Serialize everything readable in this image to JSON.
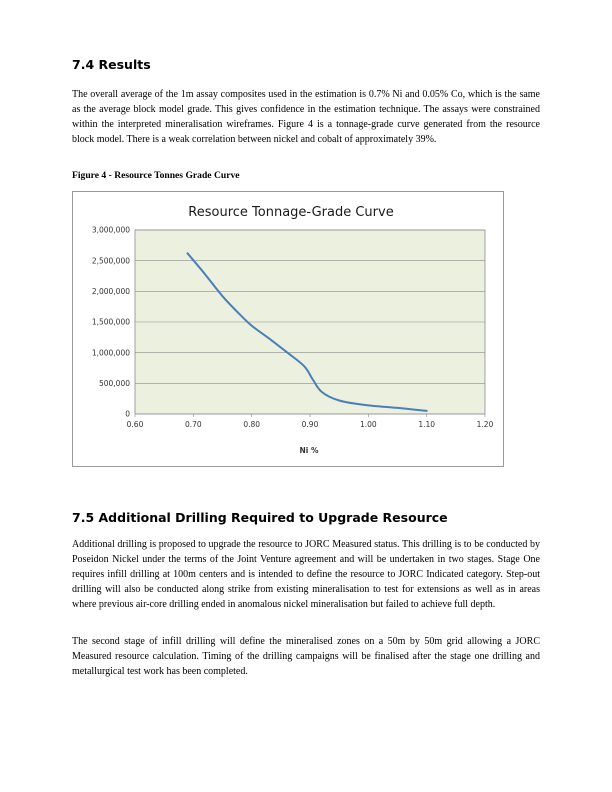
{
  "section_74": {
    "heading": "7.4 Results",
    "paragraph": "The overall average of the 1m assay composites used in the estimation is 0.7% Ni and 0.05% Co, which is the same as the average block model grade. This gives confidence in the estimation technique. The assays were constrained within the interpreted mineralisation wireframes. Figure 4 is a tonnage-grade curve generated from the resource block model. There is a weak correlation between nickel and cobalt of approximately 39%.",
    "figure_caption": "Figure 4 - Resource Tonnes Grade Curve"
  },
  "chart_data": {
    "type": "line",
    "title": "Resource Tonnage-Grade Curve",
    "xlabel": "Ni %",
    "ylabel": "",
    "xlim": [
      0.6,
      1.2
    ],
    "ylim": [
      0,
      3000000
    ],
    "x_ticks": [
      "0.60",
      "0.70",
      "0.80",
      "0.90",
      "1.00",
      "1.10",
      "1.20"
    ],
    "y_ticks": [
      "0",
      "500,000",
      "1,000,000",
      "1,500,000",
      "2,000,000",
      "2,500,000",
      "3,000,000"
    ],
    "grid": "horizontal",
    "legend": "none",
    "plot_background": "#ebf1de",
    "line_color": "#4a7ebb",
    "series": [
      {
        "x": [
          0.69,
          0.72,
          0.75,
          0.78,
          0.8,
          0.83,
          0.86,
          0.89,
          0.905,
          0.92,
          0.95,
          1.0,
          1.05,
          1.1
        ],
        "values": [
          2620000,
          2280000,
          1920000,
          1620000,
          1440000,
          1230000,
          1010000,
          780000,
          560000,
          360000,
          220000,
          140000,
          100000,
          50000
        ]
      }
    ]
  },
  "section_75": {
    "heading": "7.5 Additional Drilling Required to Upgrade Resource",
    "paragraph1": "Additional drilling is proposed to upgrade the resource to JORC Measured status. This drilling is to be conducted by Poseidon Nickel under the terms of the Joint Venture agreement and will be undertaken in two stages.  Stage One requires infill drilling at 100m centers and is intended to define the resource to JORC Indicated category.  Step-out drilling will also be conducted along strike from existing mineralisation to test for extensions as well as in areas where previous air-core drilling ended in anomalous nickel mineralisation but failed to achieve full depth.",
    "paragraph2": "The second stage of infill drilling will define the mineralised zones on a 50m by 50m grid allowing a JORC Measured resource calculation.  Timing of the drilling campaigns will be finalised after the stage one drilling and metallurgical test work has been completed."
  }
}
